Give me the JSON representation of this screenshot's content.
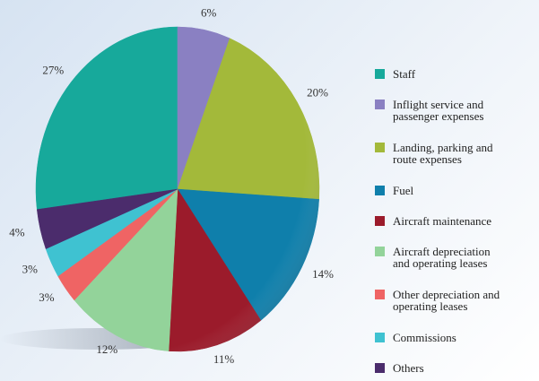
{
  "chart_data": {
    "type": "pie",
    "categories": [
      "Staff",
      "Inflight service and\npassenger expenses",
      "Landing, parking and\nroute expenses",
      "Fuel",
      "Aircraft maintenance",
      "Aircraft depreciation\nand operating leases",
      "Other depreciation and\noperating leases",
      "Commissions",
      "Others"
    ],
    "values": [
      27,
      6,
      20,
      14,
      11,
      12,
      3,
      3,
      4
    ],
    "value_labels": [
      "27%",
      "6%",
      "20%",
      "14%",
      "11%",
      "12%",
      "3%",
      "3%",
      "4%"
    ],
    "colors": [
      "#17a99b",
      "#8a80c2",
      "#a3b93a",
      "#0f7fab",
      "#9b1b2b",
      "#93d39a",
      "#ef6464",
      "#3fc2d1",
      "#4b2c6c"
    ],
    "legend": "right"
  }
}
